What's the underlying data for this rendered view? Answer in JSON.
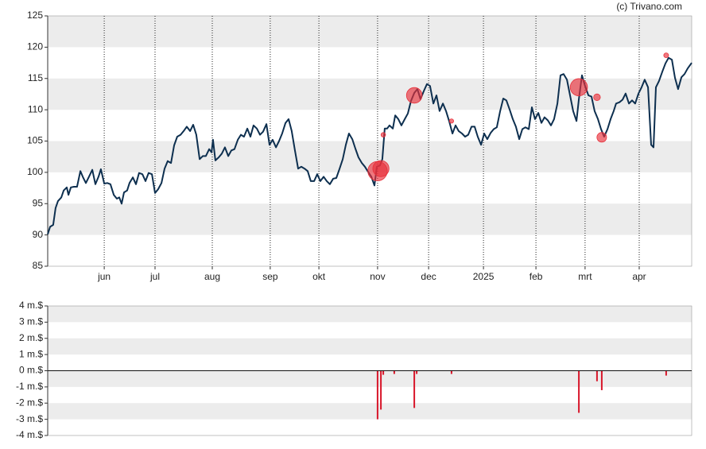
{
  "credit": "(c) Trivano.com",
  "chart_data": [
    {
      "type": "line",
      "color": "#0d2f4f",
      "xlim": [
        0,
        270
      ],
      "ylim": [
        85,
        125
      ],
      "yticks": [
        85,
        90,
        95,
        100,
        105,
        110,
        115,
        120,
        125
      ],
      "xticks": [
        {
          "value": 23.7,
          "label": "jun"
        },
        {
          "value": 45,
          "label": "jul"
        },
        {
          "value": 69,
          "label": "aug"
        },
        {
          "value": 93.3,
          "label": "sep"
        },
        {
          "value": 113.7,
          "label": "okt"
        },
        {
          "value": 138.3,
          "label": "nov"
        },
        {
          "value": 159.7,
          "label": "dec"
        },
        {
          "value": 182.7,
          "label": "2025"
        },
        {
          "value": 204.7,
          "label": "feb"
        },
        {
          "value": 225.3,
          "label": "mrt"
        },
        {
          "value": 248,
          "label": "apr"
        }
      ],
      "grid": "bands",
      "x": [
        0,
        1,
        2.3,
        3.3,
        4.3,
        5.7,
        6.7,
        8,
        8.7,
        9.7,
        11,
        12.3,
        13.7,
        14.7,
        16,
        17.3,
        18.7,
        20,
        21.3,
        22.3,
        23.7,
        25,
        26.3,
        27.7,
        29,
        30,
        31,
        32,
        33.3,
        34.3,
        35.7,
        37,
        38.3,
        39.7,
        41,
        42.3,
        43.7,
        45,
        46.3,
        47.7,
        49,
        50.3,
        51.7,
        53,
        54.3,
        55.7,
        57,
        58.3,
        59.7,
        61,
        62.3,
        63.7,
        65,
        66.3,
        67.7,
        68.7,
        69.3,
        70.3,
        71.7,
        73,
        74.3,
        75.7,
        77,
        78.3,
        79.7,
        81,
        82.3,
        83.7,
        85,
        86.3,
        87.7,
        89,
        90.3,
        91.7,
        93,
        94.3,
        95.7,
        97,
        98.3,
        99.7,
        101,
        102.3,
        103.7,
        105,
        106.3,
        107.7,
        109,
        110.3,
        111.7,
        113,
        114.3,
        115.7,
        117,
        118.3,
        119.7,
        121,
        122.3,
        123.7,
        125,
        126.3,
        127.7,
        129,
        130.3,
        131.7,
        133,
        134.3,
        135.7,
        137,
        138,
        139.3,
        140.3,
        141.3,
        142.3,
        143.3,
        144.7,
        145.7,
        147,
        148.3,
        149.7,
        151,
        152.3,
        153.7,
        155,
        156.3,
        157.7,
        159,
        160.3,
        161.7,
        163,
        164.3,
        165.7,
        167,
        168.3,
        169.7,
        171,
        172.3,
        173.7,
        175,
        176.3,
        177.7,
        179,
        180.3,
        181.7,
        183,
        184.3,
        185.7,
        187,
        188.3,
        189.7,
        191,
        192.3,
        193.7,
        195,
        196.3,
        197.7,
        199,
        200.3,
        201.7,
        203,
        204.3,
        205.7,
        207,
        208.3,
        209.7,
        211,
        212.3,
        213.7,
        215,
        216.3,
        217.7,
        219,
        220.3,
        221.7,
        222.7,
        224,
        225.3,
        226.7,
        228,
        229.3,
        230.7,
        232,
        233.3,
        234.7,
        236,
        237.3,
        238.3,
        239.7,
        241,
        242.3,
        243.7,
        245,
        246.3,
        247.7,
        249,
        250.3,
        251.7,
        253,
        254,
        255,
        256.3,
        257.7,
        259,
        260.3,
        261.7,
        263,
        264.3,
        265.7,
        267,
        268.3,
        270
      ],
      "values": [
        90.1,
        91.3,
        91.6,
        94.3,
        95.4,
        96.0,
        97.1,
        97.6,
        96.4,
        97.6,
        97.7,
        97.7,
        100.2,
        99.3,
        98.3,
        99.3,
        100.4,
        98.1,
        99.3,
        100.5,
        98.2,
        98.3,
        98.1,
        96.4,
        95.8,
        96.0,
        95.0,
        96.8,
        97.1,
        98.3,
        99.2,
        98.1,
        99.9,
        99.7,
        98.6,
        99.9,
        99.7,
        96.7,
        97.3,
        98.3,
        100.6,
        101.8,
        101.5,
        104.3,
        105.7,
        106.0,
        106.6,
        107.3,
        106.6,
        107.6,
        106.0,
        102.1,
        102.6,
        102.6,
        103.7,
        103.2,
        105.2,
        101.9,
        102.4,
        103.0,
        104.0,
        102.6,
        103.5,
        103.7,
        105.2,
        106.0,
        105.7,
        107.0,
        105.7,
        107.5,
        107.0,
        106.0,
        106.5,
        107.7,
        104.4,
        105.2,
        104.0,
        105.0,
        106.2,
        107.9,
        108.5,
        106.6,
        103.4,
        100.6,
        100.9,
        100.6,
        100.2,
        98.6,
        98.6,
        99.7,
        98.6,
        99.3,
        98.6,
        98.1,
        99.0,
        99.1,
        100.5,
        102.1,
        104.4,
        106.2,
        105.3,
        103.8,
        102.4,
        101.5,
        100.9,
        100.1,
        99.3,
        97.9,
        100.9,
        101.1,
        102.1,
        107.0,
        107.0,
        107.5,
        107.0,
        109.1,
        108.5,
        107.5,
        108.5,
        109.4,
        111.4,
        112.7,
        113.3,
        111.7,
        113.0,
        114.1,
        113.8,
        111.0,
        112.3,
        109.8,
        111.0,
        109.8,
        108.2,
        106.2,
        107.5,
        106.6,
        106.2,
        105.7,
        106.0,
        107.3,
        107.3,
        105.7,
        104.4,
        106.2,
        105.3,
        106.3,
        106.9,
        107.2,
        109.8,
        111.8,
        111.5,
        110.0,
        108.5,
        107.3,
        105.3,
        106.9,
        107.2,
        106.9,
        110.4,
        108.5,
        109.5,
        107.9,
        108.8,
        108.3,
        107.5,
        108.5,
        111.0,
        115.5,
        115.7,
        114.8,
        112.3,
        109.8,
        108.2,
        111.7,
        115.5,
        113.8,
        112.3,
        112.1,
        109.8,
        108.5,
        106.9,
        105.7,
        106.9,
        108.5,
        109.8,
        111.0,
        111.2,
        111.6,
        112.6,
        111.0,
        111.5,
        111.0,
        112.6,
        113.6,
        114.8,
        113.6,
        104.4,
        104.0,
        113.6,
        114.6,
        116.1,
        117.4,
        118.3,
        118.0,
        115.1,
        113.3,
        115.2,
        115.7,
        116.6,
        117.5
      ],
      "markers": {
        "color": "#e8303a",
        "x": [
          138.3,
          139.7,
          140.7,
          153.7,
          169.3,
          222.7,
          230.3,
          232.3,
          259.3
        ],
        "values": [
          100.2,
          100.6,
          106.0,
          112.3,
          108.2,
          113.6,
          112.0,
          105.6,
          118.7
        ],
        "sizes": [
          3.0,
          2.4,
          0.25,
          2.3,
          0.2,
          2.6,
          0.65,
          1.2,
          0.3
        ]
      }
    },
    {
      "type": "bar",
      "color": "#d8162a",
      "xlim": [
        0,
        270
      ],
      "ylim": [
        -4,
        4
      ],
      "yticks": [
        {
          "value": -4,
          "label": "-4 m.$"
        },
        {
          "value": -3,
          "label": "-3 m.$"
        },
        {
          "value": -2,
          "label": "-2 m.$"
        },
        {
          "value": -1,
          "label": "-1 m.$"
        },
        {
          "value": 0,
          "label": "0 m.$"
        },
        {
          "value": 1,
          "label": "1 m.$"
        },
        {
          "value": 2,
          "label": "2 m.$"
        },
        {
          "value": 3,
          "label": "3 m.$"
        },
        {
          "value": 4,
          "label": "4 m.$"
        }
      ],
      "grid": "bands",
      "x": [
        138.3,
        139.7,
        140.7,
        145.3,
        153.7,
        154.7,
        169.3,
        222.7,
        230.3,
        232.3,
        259.3
      ],
      "values": [
        -3.0,
        -2.4,
        -0.25,
        -0.2,
        -2.3,
        -0.2,
        -0.2,
        -2.6,
        -0.65,
        -1.2,
        -0.3
      ]
    }
  ]
}
